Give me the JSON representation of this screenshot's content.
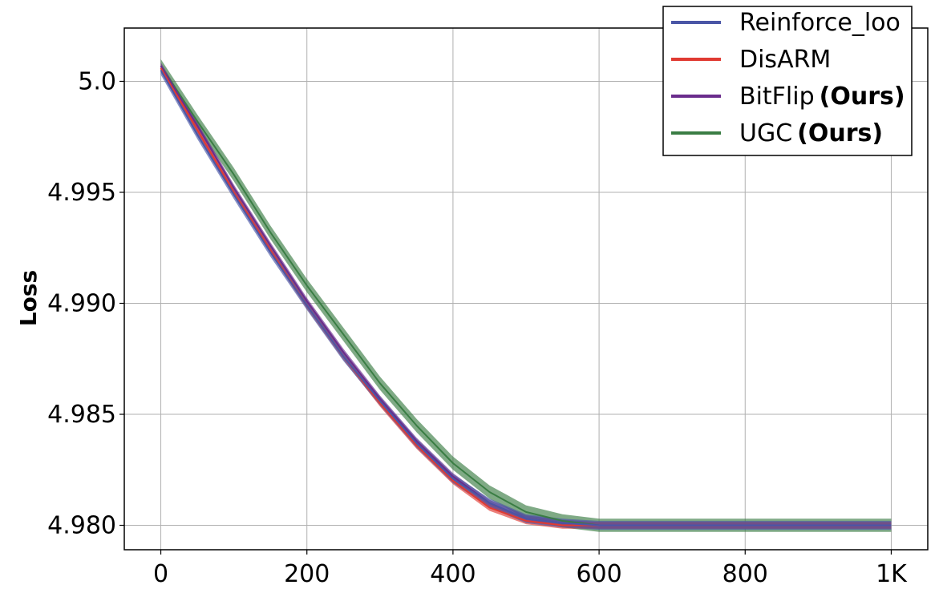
{
  "chart_data": {
    "type": "line",
    "title": "",
    "xlabel": "",
    "ylabel": "Loss",
    "xlim": [
      -50,
      1050
    ],
    "ylim": [
      4.9789,
      5.0024
    ],
    "x_ticks": [
      0,
      200,
      400,
      600,
      800,
      1000
    ],
    "x_tick_labels": [
      "0",
      "200",
      "400",
      "600",
      "800",
      "1K"
    ],
    "y_ticks": [
      4.98,
      4.985,
      4.99,
      4.995,
      5.0
    ],
    "y_tick_labels": [
      "4.980",
      "4.985",
      "4.990",
      "4.995",
      "5.0"
    ],
    "grid": true,
    "legend_position": "top-right",
    "x": [
      0,
      50,
      100,
      150,
      200,
      250,
      300,
      350,
      400,
      450,
      500,
      550,
      600,
      650,
      700,
      800,
      900,
      1000
    ],
    "series": [
      {
        "name": "Reinforce_loo",
        "legend_suffix": "",
        "color": "#4a56a6",
        "band": 0.0002,
        "values": [
          5.0005,
          4.9976,
          4.9949,
          4.9923,
          4.9899,
          4.9876,
          4.9856,
          4.9837,
          4.9821,
          4.981,
          4.9803,
          4.9801,
          4.98,
          4.98,
          4.98,
          4.98,
          4.98,
          4.98
        ]
      },
      {
        "name": "DisARM",
        "legend_suffix": "",
        "color": "#e03a32",
        "band": 0.00015,
        "values": [
          5.0006,
          4.9978,
          4.995,
          4.9924,
          4.9899,
          4.9876,
          4.9855,
          4.9836,
          4.982,
          4.9808,
          4.9802,
          4.98,
          4.98,
          4.98,
          4.98,
          4.98,
          4.98,
          4.98
        ]
      },
      {
        "name": "BitFlip",
        "legend_suffix": "(Ours)",
        "color": "#6a2c8c",
        "band": 0.00015,
        "values": [
          5.0007,
          4.998,
          4.9952,
          4.9926,
          4.9901,
          4.9878,
          4.9857,
          4.9838,
          4.9822,
          4.981,
          4.9803,
          4.9801,
          4.98,
          4.98,
          4.98,
          4.98,
          4.98,
          4.98
        ]
      },
      {
        "name": "UGC",
        "legend_suffix": "(Ours)",
        "color": "#3a7d44",
        "band": 0.0003,
        "values": [
          5.0007,
          4.9982,
          4.9958,
          4.9932,
          4.9908,
          4.9886,
          4.9864,
          4.9845,
          4.9828,
          4.9815,
          4.9806,
          4.9802,
          4.98,
          4.98,
          4.98,
          4.98,
          4.98,
          4.98
        ]
      }
    ]
  }
}
